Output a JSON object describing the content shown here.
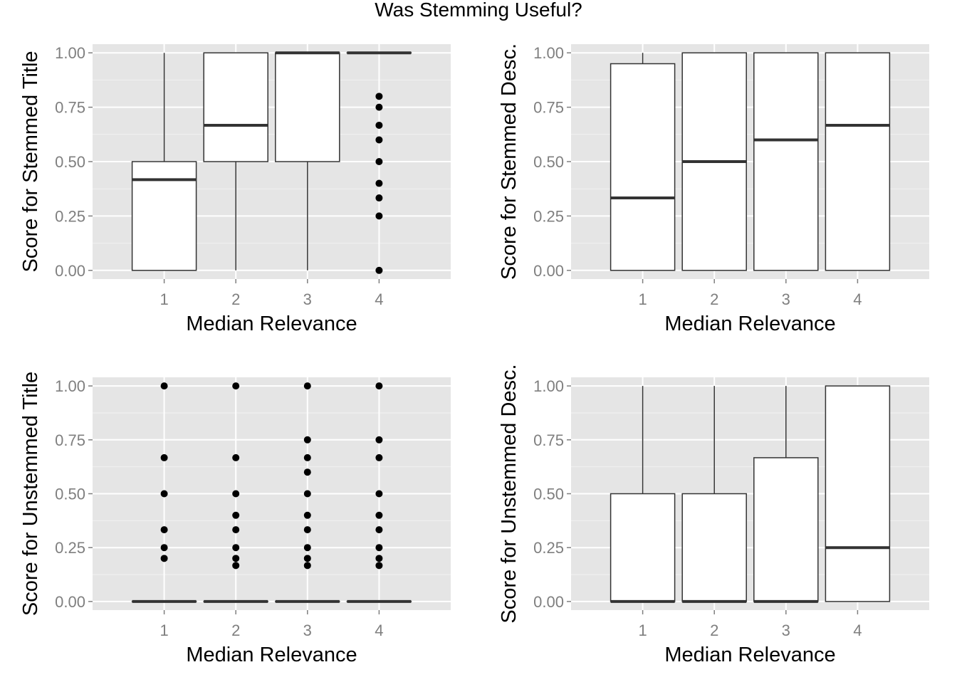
{
  "figure": {
    "title": "Was Stemming Useful?",
    "colors": {
      "panel_bg": "#E5E5E5",
      "grid_major": "#FFFFFF",
      "grid_minor": "#F2F2F2",
      "box_fill": "#FFFFFF",
      "box_stroke": "#333333",
      "point": "#000000",
      "tick_label": "#7F7F7F",
      "axis_title": "#000000"
    }
  },
  "chart_data": [
    {
      "type": "boxplot",
      "xlabel": "Median Relevance",
      "ylabel": "Score for Stemmed Title",
      "categories": [
        "1",
        "2",
        "3",
        "4"
      ],
      "yticks": [
        "0.00",
        "0.25",
        "0.50",
        "0.75",
        "1.00"
      ],
      "ylim": [
        -0.04,
        1.04
      ],
      "grid": true,
      "boxes": [
        {
          "category": "1",
          "lower_whisker": 0,
          "q1": 0,
          "median": 0.417,
          "q3": 0.5,
          "upper_whisker": 1.0,
          "outliers": []
        },
        {
          "category": "2",
          "lower_whisker": 0,
          "q1": 0.5,
          "median": 0.667,
          "q3": 1.0,
          "upper_whisker": 1.0,
          "outliers": []
        },
        {
          "category": "3",
          "lower_whisker": 0,
          "q1": 0.5,
          "median": 1.0,
          "q3": 1.0,
          "upper_whisker": 1.0,
          "outliers": []
        },
        {
          "category": "4",
          "lower_whisker": 1.0,
          "q1": 1.0,
          "median": 1.0,
          "q3": 1.0,
          "upper_whisker": 1.0,
          "outliers": [
            0.8,
            0.75,
            0.667,
            0.6,
            0.5,
            0.4,
            0.333,
            0.25,
            0.0
          ]
        }
      ]
    },
    {
      "type": "boxplot",
      "xlabel": "Median Relevance",
      "ylabel": "Score for Stemmed Desc.",
      "categories": [
        "1",
        "2",
        "3",
        "4"
      ],
      "yticks": [
        "0.00",
        "0.25",
        "0.50",
        "0.75",
        "1.00"
      ],
      "ylim": [
        -0.04,
        1.04
      ],
      "grid": true,
      "boxes": [
        {
          "category": "1",
          "lower_whisker": 0,
          "q1": 0,
          "median": 0.333,
          "q3": 0.95,
          "upper_whisker": 1.0,
          "outliers": []
        },
        {
          "category": "2",
          "lower_whisker": 0,
          "q1": 0,
          "median": 0.5,
          "q3": 1.0,
          "upper_whisker": 1.0,
          "outliers": []
        },
        {
          "category": "3",
          "lower_whisker": 0,
          "q1": 0,
          "median": 0.6,
          "q3": 1.0,
          "upper_whisker": 1.0,
          "outliers": []
        },
        {
          "category": "4",
          "lower_whisker": 0,
          "q1": 0,
          "median": 0.667,
          "q3": 1.0,
          "upper_whisker": 1.0,
          "outliers": []
        }
      ]
    },
    {
      "type": "boxplot",
      "xlabel": "Median Relevance",
      "ylabel": "Score for Unstemmed Title",
      "categories": [
        "1",
        "2",
        "3",
        "4"
      ],
      "yticks": [
        "0.00",
        "0.25",
        "0.50",
        "0.75",
        "1.00"
      ],
      "ylim": [
        -0.04,
        1.04
      ],
      "grid": true,
      "boxes": [
        {
          "category": "1",
          "lower_whisker": 0,
          "q1": 0,
          "median": 0,
          "q3": 0,
          "upper_whisker": 0,
          "outliers": [
            1.0,
            0.667,
            0.5,
            0.333,
            0.25,
            0.2
          ]
        },
        {
          "category": "2",
          "lower_whisker": 0,
          "q1": 0,
          "median": 0,
          "q3": 0,
          "upper_whisker": 0,
          "outliers": [
            1.0,
            0.667,
            0.5,
            0.4,
            0.333,
            0.25,
            0.2,
            0.167
          ]
        },
        {
          "category": "3",
          "lower_whisker": 0,
          "q1": 0,
          "median": 0,
          "q3": 0,
          "upper_whisker": 0,
          "outliers": [
            1.0,
            0.75,
            0.667,
            0.6,
            0.5,
            0.4,
            0.333,
            0.25,
            0.2,
            0.167
          ]
        },
        {
          "category": "4",
          "lower_whisker": 0,
          "q1": 0,
          "median": 0,
          "q3": 0,
          "upper_whisker": 0,
          "outliers": [
            1.0,
            0.75,
            0.667,
            0.5,
            0.4,
            0.333,
            0.25,
            0.2,
            0.167
          ]
        }
      ]
    },
    {
      "type": "boxplot",
      "xlabel": "Median Relevance",
      "ylabel": "Score for Unstemmed Desc.",
      "categories": [
        "1",
        "2",
        "3",
        "4"
      ],
      "yticks": [
        "0.00",
        "0.25",
        "0.50",
        "0.75",
        "1.00"
      ],
      "ylim": [
        -0.04,
        1.04
      ],
      "grid": true,
      "boxes": [
        {
          "category": "1",
          "lower_whisker": 0,
          "q1": 0,
          "median": 0,
          "q3": 0.5,
          "upper_whisker": 1.0,
          "outliers": []
        },
        {
          "category": "2",
          "lower_whisker": 0,
          "q1": 0,
          "median": 0,
          "q3": 0.5,
          "upper_whisker": 1.0,
          "outliers": []
        },
        {
          "category": "3",
          "lower_whisker": 0,
          "q1": 0,
          "median": 0,
          "q3": 0.667,
          "upper_whisker": 1.0,
          "outliers": []
        },
        {
          "category": "4",
          "lower_whisker": 0,
          "q1": 0,
          "median": 0.25,
          "q3": 1.0,
          "upper_whisker": 1.0,
          "outliers": []
        }
      ]
    }
  ]
}
